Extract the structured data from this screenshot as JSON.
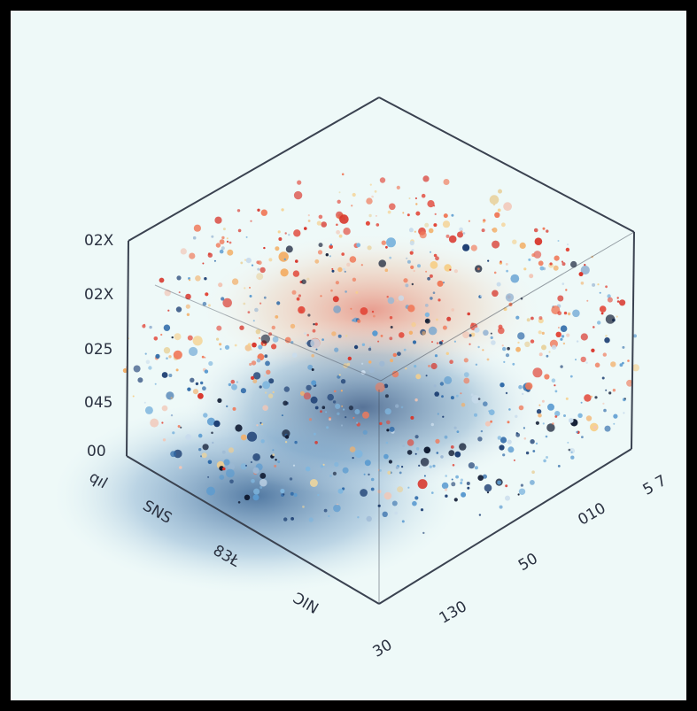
{
  "vertical_axis_labels": [
    "02X",
    "02X",
    "025",
    "045",
    "00"
  ],
  "left_axis_labels": [
    "qıl",
    "SNS",
    "83Ł",
    "ƆIN"
  ],
  "right_axis_labels": [
    "5 7",
    "010",
    "50",
    "130",
    "30"
  ]
}
